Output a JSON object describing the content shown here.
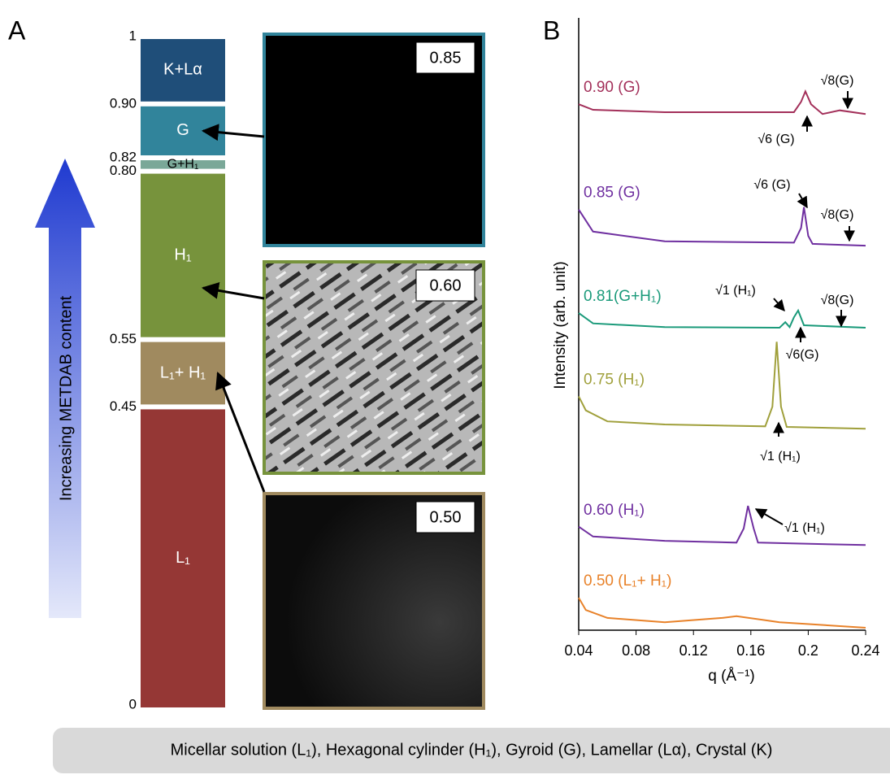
{
  "panel_a": {
    "label": "A",
    "arrow_label": "Increasing METDAB content",
    "scale_ticks": [
      1,
      {
        "value": 0.9,
        "label": "0.90"
      },
      0.82,
      {
        "value": 0.8,
        "label": "0.80"
      },
      0.55,
      0.45,
      0
    ],
    "phases": [
      {
        "name": "K+Lα",
        "from": 0.9,
        "to": 1,
        "color": "#1f4e79"
      },
      {
        "name": "G",
        "from": 0.82,
        "to": 0.9,
        "color": "#31849b"
      },
      {
        "name": "G+H₁",
        "from": 0.8,
        "to": 0.82,
        "color": "#7aa898"
      },
      {
        "name": "H₁",
        "from": 0.55,
        "to": 0.8,
        "color": "#77933c"
      },
      {
        "name": "L₁+ H₁",
        "from": 0.45,
        "to": 0.55,
        "color": "#a08a5f"
      },
      {
        "name": "L₁",
        "from": 0,
        "to": 0.45,
        "color": "#953735"
      }
    ],
    "micrographs": [
      {
        "label": "0.85"
      },
      {
        "label": "0.60"
      },
      {
        "label": "0.50"
      }
    ]
  },
  "chart_data": {
    "type": "line",
    "panel_label": "B",
    "xlabel": "q (Å⁻¹)",
    "ylabel": "Intensity (arb. unit)",
    "xlim": [
      0.04,
      0.24
    ],
    "xticks": [
      0.04,
      0.08,
      0.12,
      0.16,
      0.2,
      0.24
    ],
    "ylim": [
      0,
      100
    ],
    "series": [
      {
        "name": "0.90 (G)",
        "color": "#a3305a",
        "x": [
          0.04,
          0.05,
          0.1,
          0.19,
          0.195,
          0.198,
          0.202,
          0.21,
          0.222,
          0.24
        ],
        "values": [
          85.9,
          85.0,
          84.6,
          84.6,
          86.3,
          88.0,
          85.9,
          84.3,
          84.9,
          84.3
        ]
      },
      {
        "name": "0.85 (G)",
        "color": "#6f2fa0",
        "x": [
          0.04,
          0.05,
          0.1,
          0.19,
          0.195,
          0.197,
          0.2,
          0.203,
          0.24
        ],
        "values": [
          68.7,
          65.1,
          63.5,
          63.3,
          65.7,
          69.1,
          64.4,
          63.1,
          62.8
        ]
      },
      {
        "name": "0.81(G+H₁)",
        "color": "#1a9a7a",
        "x": [
          0.04,
          0.05,
          0.1,
          0.18,
          0.184,
          0.187,
          0.19,
          0.193,
          0.197,
          0.24
        ],
        "values": [
          51.8,
          50.1,
          49.5,
          49.4,
          50.3,
          49.5,
          51.1,
          52.2,
          49.8,
          49.4
        ]
      },
      {
        "name": "0.75 (H₁)",
        "color": "#a0a03c",
        "x": [
          0.04,
          0.045,
          0.06,
          0.1,
          0.17,
          0.175,
          0.178,
          0.181,
          0.185,
          0.24
        ],
        "values": [
          38.2,
          35.9,
          34.1,
          33.6,
          33.3,
          36.5,
          47.1,
          36.5,
          33.2,
          32.9
        ]
      },
      {
        "name": "0.60 (H₁)",
        "color": "#7030a0",
        "x": [
          0.04,
          0.05,
          0.1,
          0.15,
          0.155,
          0.158,
          0.162,
          0.165,
          0.24
        ],
        "values": [
          16.9,
          15.3,
          14.6,
          14.3,
          16.6,
          20.3,
          16.6,
          14.3,
          13.9
        ]
      },
      {
        "name": "0.50 (L₁+ H₁)",
        "color": "#e8822a",
        "x": [
          0.04,
          0.045,
          0.06,
          0.1,
          0.14,
          0.15,
          0.18,
          0.24
        ],
        "values": [
          5.3,
          3.3,
          2.0,
          1.3,
          2.0,
          2.3,
          1.3,
          0.4
        ]
      }
    ],
    "annotations": [
      "√8(G)",
      "√6 (G)",
      "√6 (G)",
      "√8(G)",
      "√1 (H₁)",
      "√8(G)",
      "√6(G)",
      "√1 (H₁)",
      "√1 (H₁)"
    ]
  },
  "caption": "Micellar solution (L₁), Hexagonal cylinder (H₁), Gyroid (G), Lamellar (Lα), Crystal (K)"
}
